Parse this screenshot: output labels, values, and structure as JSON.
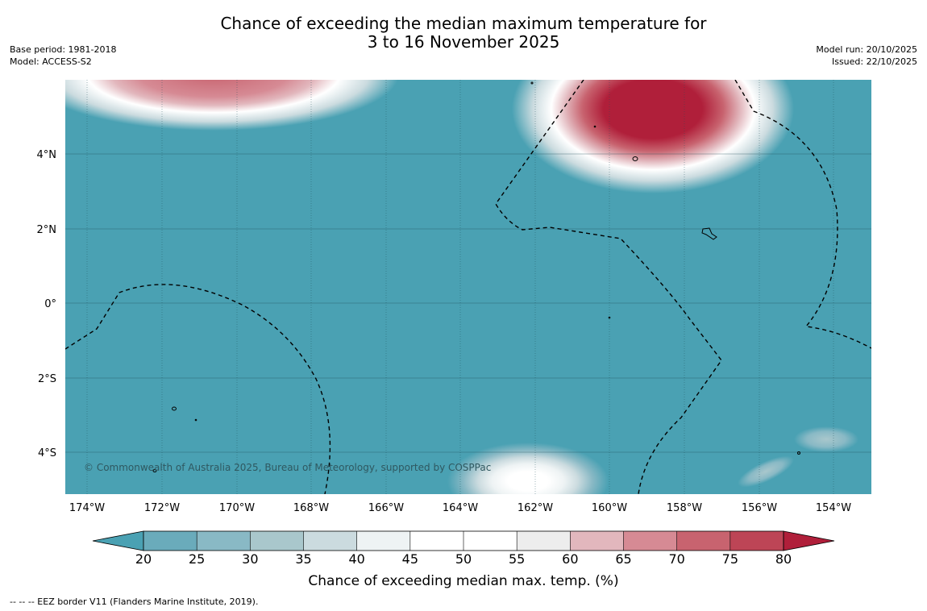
{
  "title": {
    "line1": "Chance of exceeding the median maximum temperature for",
    "line2": "3 to 16 November 2025"
  },
  "meta_left": {
    "base_period": "Base period: 1981-2018",
    "model": "Model: ACCESS-S2"
  },
  "meta_right": {
    "model_run": "Model run: 20/10/2025",
    "issued": "Issued: 22/10/2025"
  },
  "map": {
    "lon_labels": [
      "174°W",
      "172°W",
      "170°W",
      "168°W",
      "166°W",
      "164°W",
      "162°W",
      "160°W",
      "158°W",
      "156°W",
      "154°W"
    ],
    "lat_labels": [
      "4°N",
      "2°N",
      "0°",
      "2°S",
      "4°S"
    ],
    "copyright": "© Commonwealth of Australia 2025, Bureau of Meteorology, supported by COSPPac",
    "ocean_color": "#4aa1b3"
  },
  "colorbar": {
    "ticks": [
      "20",
      "25",
      "30",
      "35",
      "40",
      "45",
      "50",
      "55",
      "60",
      "65",
      "70",
      "75",
      "80"
    ],
    "colors": [
      "#6aabbb",
      "#89b9c5",
      "#a9c7cc",
      "#cbdbdf",
      "#eef3f4",
      "#ffffff",
      "#ffffff",
      "#ededed",
      "#e2b7bd",
      "#d68a94",
      "#c8636f",
      "#bd4556"
    ],
    "low_extend_color": "#4aa1b3",
    "high_extend_color": "#b01f3a",
    "title": "Chance of exceeding median max. temp. (%)"
  },
  "footnote": "-- -- -- EEZ border V11 (Flanders Marine Institute, 2019)."
}
